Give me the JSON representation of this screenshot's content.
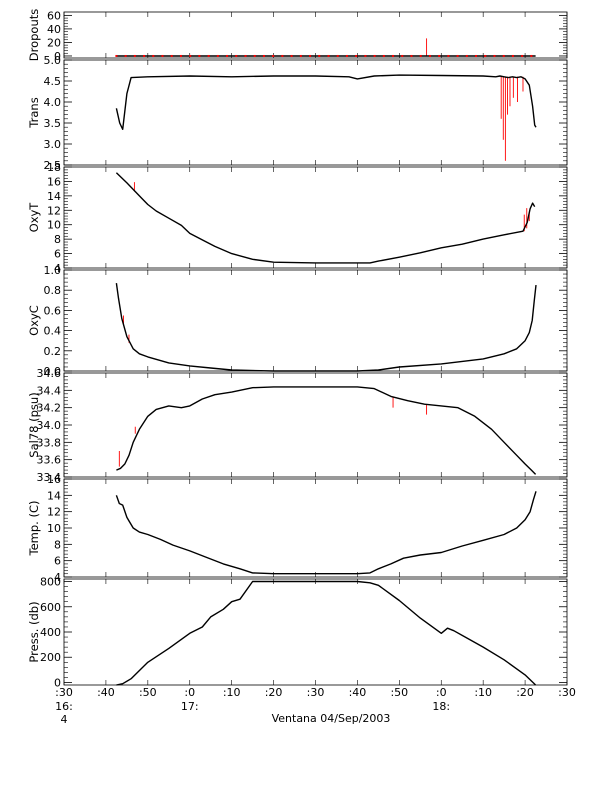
{
  "figure": {
    "caption": "Ventana 04/Sep/2003",
    "x_ticks": [
      {
        "t": 30,
        "label": ":30"
      },
      {
        "t": 40,
        "label": ":40"
      },
      {
        "t": 50,
        "label": ":50"
      },
      {
        "t": 60,
        "label": ":0"
      },
      {
        "t": 70,
        "label": ":10"
      },
      {
        "t": 80,
        "label": ":20"
      },
      {
        "t": 90,
        "label": ":30"
      },
      {
        "t": 100,
        "label": ":40"
      },
      {
        "t": 110,
        "label": ":50"
      },
      {
        "t": 120,
        "label": ":0"
      },
      {
        "t": 130,
        "label": ":10"
      },
      {
        "t": 140,
        "label": ":20"
      },
      {
        "t": 150,
        "label": ":30"
      }
    ],
    "hour_labels": [
      {
        "t": 30,
        "label": "16:"
      },
      {
        "t": 60,
        "label": "17:"
      },
      {
        "t": 120,
        "label": "18:"
      }
    ],
    "extra_label": {
      "t": 30,
      "label": "4"
    }
  },
  "chart_data": [
    {
      "id": "dropouts",
      "type": "line",
      "ylabel": "Dropouts",
      "ylim": [
        -3,
        65
      ],
      "yticks": [
        0,
        20,
        40,
        60
      ],
      "ytick_labels": [
        "0",
        "20",
        "40",
        "60"
      ],
      "xlim": [
        30,
        150
      ],
      "x_unit": "minutes after 16:00",
      "series": [
        {
          "color": "#000000",
          "x": [
            42.5,
            142.5
          ],
          "y": [
            0,
            0
          ]
        }
      ],
      "spikes": [
        {
          "x": 116.5,
          "y0": 0,
          "y1": 26,
          "color": "#ff0000"
        }
      ]
    },
    {
      "id": "trans",
      "type": "line",
      "ylabel": "Trans",
      "ylim": [
        2.5,
        5.0
      ],
      "yticks": [
        2.5,
        3.0,
        3.5,
        4.0,
        4.5,
        5.0
      ],
      "ytick_labels": [
        "2.5",
        "3.0",
        "3.5",
        "4.0",
        "4.5",
        "5.0"
      ],
      "xlim": [
        30,
        150
      ],
      "series": [
        {
          "color": "#000000",
          "x": [
            42.5,
            43.3,
            44.0,
            45.0,
            46.0,
            50,
            60,
            70,
            80,
            90,
            98,
            100,
            104,
            110,
            120,
            130,
            133,
            134,
            135,
            136,
            137,
            138,
            139,
            140,
            141,
            141.8,
            142.3,
            142.6
          ],
          "y": [
            3.85,
            3.5,
            3.35,
            4.2,
            4.58,
            4.6,
            4.62,
            4.6,
            4.62,
            4.62,
            4.6,
            4.55,
            4.62,
            4.64,
            4.63,
            4.62,
            4.6,
            4.62,
            4.6,
            4.58,
            4.6,
            4.58,
            4.6,
            4.55,
            4.4,
            3.9,
            3.45,
            3.4
          ]
        }
      ],
      "spikes": [
        {
          "x": 134.3,
          "y0": 4.6,
          "y1": 3.6,
          "color": "#ff0000"
        },
        {
          "x": 134.8,
          "y0": 4.6,
          "y1": 3.1,
          "color": "#ff0000"
        },
        {
          "x": 135.3,
          "y0": 4.6,
          "y1": 2.6,
          "color": "#ff0000"
        },
        {
          "x": 135.8,
          "y0": 4.6,
          "y1": 3.7,
          "color": "#ff0000"
        },
        {
          "x": 136.4,
          "y0": 4.6,
          "y1": 3.9,
          "color": "#ff0000"
        },
        {
          "x": 137.2,
          "y0": 4.6,
          "y1": 4.1,
          "color": "#ff0000"
        },
        {
          "x": 138.2,
          "y0": 4.6,
          "y1": 4.0,
          "color": "#ff0000"
        },
        {
          "x": 139.5,
          "y0": 4.6,
          "y1": 4.25,
          "color": "#ff0000"
        }
      ]
    },
    {
      "id": "oxyt",
      "type": "line",
      "ylabel": "OxyT",
      "ylim": [
        4,
        18
      ],
      "yticks": [
        4,
        6,
        8,
        10,
        12,
        14,
        16,
        18
      ],
      "ytick_labels": [
        "4",
        "6",
        "8",
        "10",
        "12",
        "14",
        "16",
        "18"
      ],
      "xlim": [
        30,
        150
      ],
      "series": [
        {
          "color": "#000000",
          "x": [
            42.5,
            45,
            48,
            50,
            52,
            55,
            58,
            60,
            63,
            66,
            70,
            75,
            80,
            90,
            100,
            103,
            105,
            110,
            115,
            120,
            125,
            130,
            135,
            139.5,
            140.5,
            141.2,
            141.8,
            142.3
          ],
          "y": [
            17.2,
            15.8,
            14.0,
            12.8,
            11.9,
            10.9,
            9.9,
            8.8,
            7.9,
            7.0,
            6.0,
            5.2,
            4.8,
            4.7,
            4.7,
            4.7,
            4.95,
            5.5,
            6.1,
            6.8,
            7.3,
            8.0,
            8.6,
            9.1,
            10.3,
            12.2,
            13.0,
            12.5
          ]
        }
      ],
      "spikes": [
        {
          "x": 46.8,
          "y0": 14.6,
          "y1": 15.9,
          "color": "#ff0000"
        },
        {
          "x": 139.8,
          "y0": 9.1,
          "y1": 11.4,
          "color": "#ff0000"
        },
        {
          "x": 140.4,
          "y0": 9.5,
          "y1": 12.3,
          "color": "#ff0000"
        },
        {
          "x": 141.0,
          "y0": 10.5,
          "y1": 11.6,
          "color": "#ff0000"
        }
      ]
    },
    {
      "id": "oxyc",
      "type": "line",
      "ylabel": "OxyC",
      "ylim": [
        0.0,
        1.0
      ],
      "yticks": [
        0.0,
        0.2,
        0.4,
        0.6,
        0.8,
        1.0
      ],
      "ytick_labels": [
        "0.0",
        "0.2",
        "0.4",
        "0.6",
        "0.8",
        "1.0"
      ],
      "xlim": [
        30,
        150
      ],
      "series": [
        {
          "color": "#000000",
          "x": [
            42.5,
            43.0,
            43.8,
            45,
            46.5,
            48,
            50,
            55,
            60,
            65,
            70,
            80,
            90,
            100,
            105,
            110,
            120,
            130,
            135,
            138,
            140,
            141,
            141.7,
            142.2,
            142.6
          ],
          "y": [
            0.87,
            0.72,
            0.52,
            0.34,
            0.22,
            0.17,
            0.14,
            0.08,
            0.05,
            0.03,
            0.01,
            0.0,
            0.0,
            0.0,
            0.01,
            0.04,
            0.07,
            0.12,
            0.17,
            0.22,
            0.3,
            0.38,
            0.5,
            0.7,
            0.85
          ]
        }
      ],
      "spikes": [
        {
          "x": 44.2,
          "y0": 0.45,
          "y1": 0.55,
          "color": "#ff0000"
        },
        {
          "x": 45.5,
          "y0": 0.28,
          "y1": 0.36,
          "color": "#ff0000"
        }
      ]
    },
    {
      "id": "sal78",
      "type": "line",
      "ylabel": "Sal78 (psu)",
      "ylim": [
        33.4,
        34.6
      ],
      "yticks": [
        33.4,
        33.6,
        33.8,
        34.0,
        34.2,
        34.4,
        34.6
      ],
      "ytick_labels": [
        "33.4",
        "33.6",
        "33.8",
        "34.0",
        "34.2",
        "34.4",
        "34.6"
      ],
      "xlim": [
        30,
        150
      ],
      "series": [
        {
          "color": "#000000",
          "x": [
            42.5,
            43.5,
            44.5,
            45.5,
            46.5,
            48,
            50,
            52,
            55,
            58,
            60,
            63,
            66,
            70,
            75,
            80,
            90,
            100,
            104,
            108,
            112,
            116,
            120,
            124,
            128,
            132,
            135,
            138,
            140,
            141.5,
            142.5
          ],
          "y": [
            33.48,
            33.5,
            33.55,
            33.65,
            33.8,
            33.95,
            34.1,
            34.18,
            34.22,
            34.2,
            34.22,
            34.3,
            34.35,
            34.38,
            34.43,
            34.44,
            34.44,
            34.44,
            34.42,
            34.33,
            34.28,
            34.24,
            34.22,
            34.2,
            34.1,
            33.95,
            33.8,
            33.65,
            33.55,
            33.48,
            33.43
          ]
        }
      ],
      "spikes": [
        {
          "x": 43.2,
          "y0": 33.52,
          "y1": 33.7,
          "color": "#ff0000"
        },
        {
          "x": 47.0,
          "y0": 33.9,
          "y1": 33.98,
          "color": "#ff0000"
        },
        {
          "x": 108.5,
          "y0": 34.32,
          "y1": 34.2,
          "color": "#ff0000"
        },
        {
          "x": 116.5,
          "y0": 34.24,
          "y1": 34.12,
          "color": "#ff0000"
        }
      ]
    },
    {
      "id": "temp",
      "type": "line",
      "ylabel": "Temp. (C)",
      "ylim": [
        4,
        16
      ],
      "yticks": [
        4,
        6,
        8,
        10,
        12,
        14,
        16
      ],
      "ytick_labels": [
        "4",
        "6",
        "8",
        "10",
        "12",
        "14",
        "16"
      ],
      "xlim": [
        30,
        150
      ],
      "series": [
        {
          "color": "#000000",
          "x": [
            42.5,
            43.2,
            44.0,
            45.0,
            46.5,
            48,
            50,
            53,
            56,
            60,
            64,
            68,
            72,
            75,
            80,
            90,
            100,
            103,
            105,
            108,
            111,
            115,
            120,
            125,
            130,
            135,
            138,
            140,
            141.2,
            142.0,
            142.6
          ],
          "y": [
            14.0,
            13.0,
            12.8,
            11.3,
            10.0,
            9.5,
            9.2,
            8.6,
            7.9,
            7.2,
            6.4,
            5.6,
            5.0,
            4.5,
            4.4,
            4.4,
            4.4,
            4.5,
            5.0,
            5.6,
            6.3,
            6.7,
            7.0,
            7.8,
            8.5,
            9.2,
            10.0,
            11.0,
            12.0,
            13.5,
            14.5
          ]
        }
      ],
      "spikes": []
    },
    {
      "id": "press",
      "type": "line",
      "ylabel": "Press. (db)",
      "ylim": [
        -20,
        820
      ],
      "yticks": [
        0,
        200,
        400,
        600,
        800
      ],
      "ytick_labels": [
        "0",
        "200",
        "400",
        "600",
        "800"
      ],
      "xlim": [
        30,
        150
      ],
      "series": [
        {
          "color": "#000000",
          "x": [
            42.5,
            44.0,
            46,
            50,
            55,
            60,
            63,
            65,
            68,
            70,
            72,
            75,
            80,
            90,
            100,
            103,
            105,
            110,
            115,
            120,
            121.5,
            123,
            130,
            135,
            140,
            142.5
          ],
          "y": [
            -20,
            -10,
            30,
            160,
            270,
            390,
            440,
            520,
            580,
            640,
            660,
            800,
            800,
            800,
            800,
            790,
            770,
            650,
            510,
            390,
            430,
            410,
            280,
            180,
            60,
            -20
          ]
        }
      ],
      "spikes": []
    }
  ]
}
